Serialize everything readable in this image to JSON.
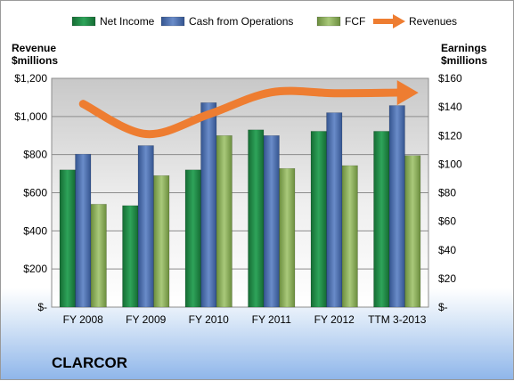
{
  "company": "CLARCOR",
  "chart_data": {
    "type": "bar",
    "categories": [
      "FY 2008",
      "FY 2009",
      "FY 2010",
      "FY 2011",
      "FY 2012",
      "TTM 3-2013"
    ],
    "left_axis": {
      "title_lines": [
        "Revenue",
        "$millions"
      ],
      "min": 0,
      "max": 1200,
      "step": 200,
      "tick_labels": [
        "$-",
        "$200",
        "$400",
        "$600",
        "$800",
        "$1,000",
        "$1,200"
      ]
    },
    "right_axis": {
      "title_lines": [
        "Earnings",
        "$millions"
      ],
      "min": 0,
      "max": 160,
      "step": 20,
      "tick_labels": [
        "$-",
        "$20",
        "$40",
        "$60",
        "$80",
        "$100",
        "$120",
        "$140",
        "$160"
      ]
    },
    "series": [
      {
        "name": "Net Income",
        "axis": "right",
        "type": "bar",
        "color": "#1f8a45",
        "values": [
          96,
          71,
          96,
          124,
          123,
          123
        ]
      },
      {
        "name": "Cash from Operations",
        "axis": "right",
        "type": "bar",
        "color": "#4a6fb0",
        "values": [
          107,
          113,
          143,
          120,
          136,
          141
        ]
      },
      {
        "name": "FCF",
        "axis": "right",
        "type": "bar",
        "color": "#8db35a",
        "values": [
          72,
          92,
          120,
          97,
          99,
          106
        ]
      },
      {
        "name": "Revenues",
        "axis": "left",
        "type": "line",
        "color": "#ee7d31",
        "values": [
          1066,
          908,
          1011,
          1127,
          1122,
          1125
        ]
      }
    ],
    "grid": true,
    "legend": "top"
  }
}
